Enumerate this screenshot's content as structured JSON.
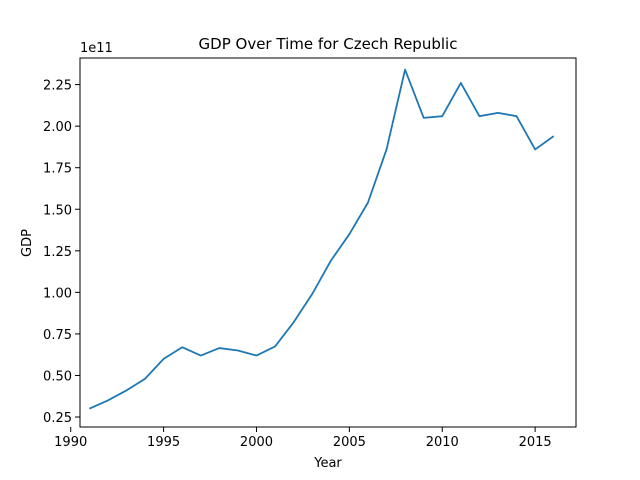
{
  "chart_data": {
    "type": "line",
    "title": "GDP Over Time for Czech Republic",
    "xlabel": "Year",
    "ylabel": "GDP",
    "y_offset_text": "1e11",
    "xlim": [
      1990.5,
      2017.2
    ],
    "ylim": [
      19000000000.0,
      241000000000.0
    ],
    "x_ticks": [
      1990,
      1995,
      2000,
      2005,
      2010,
      2015
    ],
    "y_ticks": [
      0.25,
      0.5,
      0.75,
      1.0,
      1.25,
      1.5,
      1.75,
      2.0,
      2.25
    ],
    "y_tick_labels": [
      "0.25",
      "0.50",
      "0.75",
      "1.00",
      "1.25",
      "1.50",
      "1.75",
      "2.00",
      "2.25"
    ],
    "grid": false,
    "series": [
      {
        "color": "#1f77b4",
        "x": [
          1991,
          1992,
          1993,
          1994,
          1995,
          1996,
          1997,
          1998,
          1999,
          2000,
          2001,
          2002,
          2003,
          2004,
          2005,
          2006,
          2007,
          2008,
          2009,
          2010,
          2011,
          2012,
          2013,
          2014,
          2015,
          2016
        ],
        "values": [
          0.3,
          0.35,
          0.41,
          0.48,
          0.6,
          0.67,
          0.62,
          0.665,
          0.65,
          0.62,
          0.675,
          0.82,
          0.99,
          1.19,
          1.35,
          1.54,
          1.86,
          2.34,
          2.05,
          2.06,
          2.26,
          2.06,
          2.08,
          2.06,
          1.86,
          1.94
        ]
      }
    ]
  }
}
